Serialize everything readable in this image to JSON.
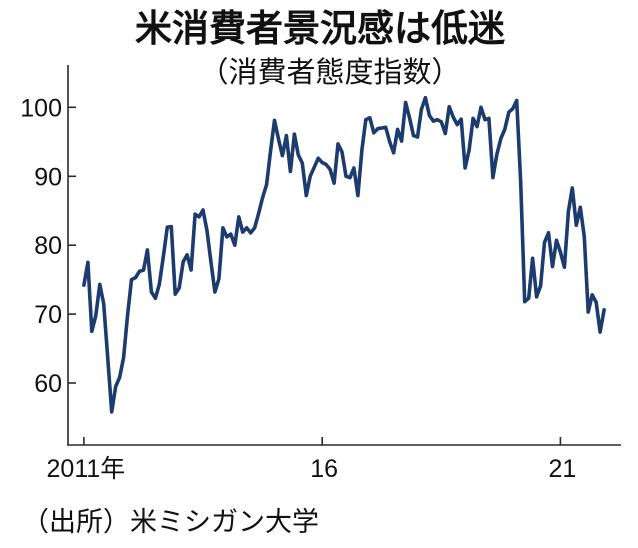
{
  "colors": {
    "series": "#1c3b6e",
    "axis": "#2a2a2a",
    "text": "#111111"
  },
  "chart_data": {
    "type": "line",
    "title": "米消費者景況感は低迷",
    "subtitle": "（消費者態度指数）",
    "source": "（出所）米ミシガン大学",
    "grid": false,
    "ylim": [
      51,
      106
    ],
    "xlim": [
      "2010-09",
      "2022-04"
    ],
    "y_ticks": [
      {
        "value": 100,
        "label": "100"
      },
      {
        "value": 90,
        "label": "90"
      },
      {
        "value": 80,
        "label": "80"
      },
      {
        "value": 70,
        "label": "70"
      },
      {
        "value": 60,
        "label": "60"
      }
    ],
    "x_ticks": [
      {
        "value": "2011-01",
        "label": "2011年"
      },
      {
        "value": "2016-01",
        "label": "16"
      },
      {
        "value": "2021-01",
        "label": "21"
      }
    ],
    "x": [
      "2011-01",
      "2011-02",
      "2011-03",
      "2011-04",
      "2011-05",
      "2011-06",
      "2011-07",
      "2011-08",
      "2011-09",
      "2011-10",
      "2011-11",
      "2011-12",
      "2012-01",
      "2012-02",
      "2012-03",
      "2012-04",
      "2012-05",
      "2012-06",
      "2012-07",
      "2012-08",
      "2012-09",
      "2012-10",
      "2012-11",
      "2012-12",
      "2013-01",
      "2013-02",
      "2013-03",
      "2013-04",
      "2013-05",
      "2013-06",
      "2013-07",
      "2013-08",
      "2013-09",
      "2013-10",
      "2013-11",
      "2013-12",
      "2014-01",
      "2014-02",
      "2014-03",
      "2014-04",
      "2014-05",
      "2014-06",
      "2014-07",
      "2014-08",
      "2014-09",
      "2014-10",
      "2014-11",
      "2014-12",
      "2015-01",
      "2015-02",
      "2015-03",
      "2015-04",
      "2015-05",
      "2015-06",
      "2015-07",
      "2015-08",
      "2015-09",
      "2015-10",
      "2015-11",
      "2015-12",
      "2016-01",
      "2016-02",
      "2016-03",
      "2016-04",
      "2016-05",
      "2016-06",
      "2016-07",
      "2016-08",
      "2016-09",
      "2016-10",
      "2016-11",
      "2016-12",
      "2017-01",
      "2017-02",
      "2017-03",
      "2017-04",
      "2017-05",
      "2017-06",
      "2017-07",
      "2017-08",
      "2017-09",
      "2017-10",
      "2017-11",
      "2017-12",
      "2018-01",
      "2018-02",
      "2018-03",
      "2018-04",
      "2018-05",
      "2018-06",
      "2018-07",
      "2018-08",
      "2018-09",
      "2018-10",
      "2018-11",
      "2018-12",
      "2019-01",
      "2019-02",
      "2019-03",
      "2019-04",
      "2019-05",
      "2019-06",
      "2019-07",
      "2019-08",
      "2019-09",
      "2019-10",
      "2019-11",
      "2019-12",
      "2020-01",
      "2020-02",
      "2020-03",
      "2020-04",
      "2020-05",
      "2020-06",
      "2020-07",
      "2020-08",
      "2020-09",
      "2020-10",
      "2020-11",
      "2020-12",
      "2021-01",
      "2021-02",
      "2021-03",
      "2021-04",
      "2021-05",
      "2021-06",
      "2021-07",
      "2021-08",
      "2021-09",
      "2021-10",
      "2021-11",
      "2021-12"
    ],
    "series": [
      {
        "values": [
          74.2,
          77.5,
          67.5,
          69.8,
          74.3,
          71.5,
          63.7,
          55.8,
          59.5,
          60.8,
          63.7,
          69.9,
          75.0,
          75.3,
          76.2,
          76.4,
          79.3,
          73.2,
          72.3,
          74.3,
          78.3,
          82.6,
          82.7,
          72.9,
          73.8,
          77.6,
          78.6,
          76.4,
          84.5,
          84.1,
          85.1,
          82.1,
          77.5,
          73.2,
          75.1,
          82.5,
          81.2,
          81.6,
          80.0,
          84.1,
          81.9,
          82.5,
          81.8,
          82.5,
          84.6,
          86.9,
          88.8,
          93.6,
          98.1,
          95.4,
          93.0,
          95.9,
          90.7,
          96.1,
          93.1,
          91.9,
          87.2,
          90.0,
          91.3,
          92.6,
          92.0,
          91.7,
          91.0,
          89.0,
          94.7,
          93.5,
          90.0,
          89.8,
          91.2,
          87.2,
          93.8,
          98.2,
          98.5,
          96.3,
          96.9,
          97.0,
          97.1,
          95.0,
          93.4,
          96.8,
          95.1,
          100.7,
          98.5,
          95.9,
          95.7,
          99.7,
          101.4,
          98.8,
          98.0,
          98.2,
          97.9,
          96.2,
          100.1,
          98.6,
          97.5,
          98.3,
          91.2,
          93.8,
          98.4,
          97.2,
          100.0,
          98.2,
          98.4,
          89.8,
          93.2,
          95.5,
          96.8,
          99.3,
          99.8,
          101.0,
          89.1,
          71.8,
          72.3,
          78.1,
          72.5,
          74.1,
          80.4,
          81.8,
          76.9,
          80.7,
          79.0,
          76.8,
          84.9,
          88.3,
          82.9,
          85.5,
          81.2,
          70.3,
          72.8,
          71.7,
          67.4,
          70.6
        ]
      }
    ]
  }
}
